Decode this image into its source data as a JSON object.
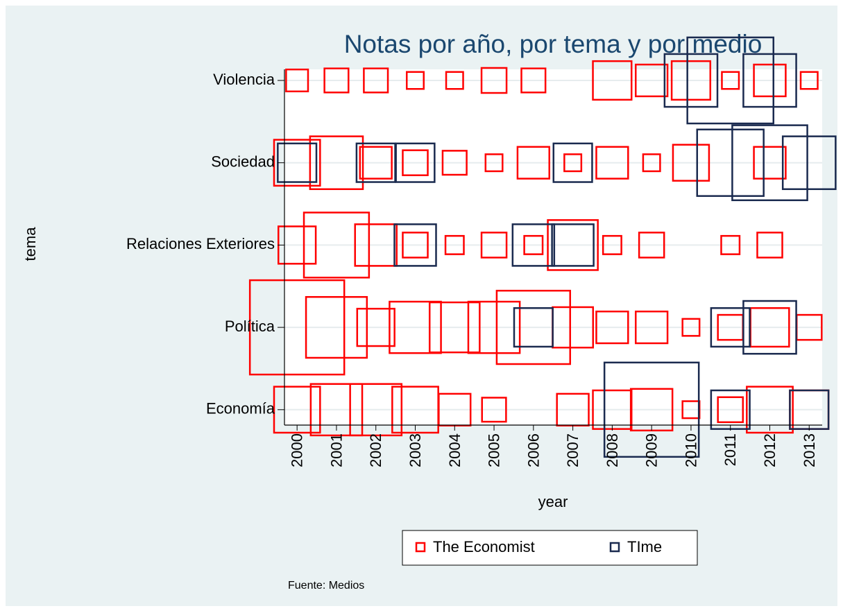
{
  "chart_data": {
    "type": "scatter",
    "title": "Notas por año, por tema y por medio",
    "xlabel": "year",
    "ylabel": "tema",
    "note": "Fuente: Medios",
    "categories": [
      "Violencia",
      "Sociedad",
      "Relaciones Exteriores",
      "Política",
      "Economía"
    ],
    "xlim": [
      1999.68,
      2013.33
    ],
    "xticks": [
      2000,
      2001,
      2002,
      2003,
      2004,
      2005,
      2006,
      2007,
      2008,
      2009,
      2010,
      2011,
      2012,
      2013
    ],
    "grid": true,
    "legend": "bottom",
    "series": [
      {
        "name": "The Economist",
        "color": "#ff0000",
        "x": [
          2000,
          2001,
          2002,
          2003,
          2004,
          2005,
          2006,
          2008,
          2009,
          2010,
          2011,
          2012,
          2013,
          2000,
          2001,
          2002,
          2003,
          2004,
          2005,
          2006,
          2007,
          2008,
          2009,
          2010,
          2012,
          2000,
          2001,
          2002,
          2003,
          2004,
          2005,
          2006,
          2007,
          2008,
          2009,
          2011,
          2012,
          2000,
          2001,
          2002,
          2003,
          2004,
          2005,
          2006,
          2007,
          2008,
          2009,
          2010,
          2011,
          2012,
          2013,
          2000,
          2001,
          2002,
          2003,
          2004,
          2005,
          2007,
          2008,
          2009,
          2010,
          2011,
          2012,
          2013
        ],
        "y": [
          "Violencia",
          "Violencia",
          "Violencia",
          "Violencia",
          "Violencia",
          "Violencia",
          "Violencia",
          "Violencia",
          "Violencia",
          "Violencia",
          "Violencia",
          "Violencia",
          "Violencia",
          "Sociedad",
          "Sociedad",
          "Sociedad",
          "Sociedad",
          "Sociedad",
          "Sociedad",
          "Sociedad",
          "Sociedad",
          "Sociedad",
          "Sociedad",
          "Sociedad",
          "Sociedad",
          "Relaciones Exteriores",
          "Relaciones Exteriores",
          "Relaciones Exteriores",
          "Relaciones Exteriores",
          "Relaciones Exteriores",
          "Relaciones Exteriores",
          "Relaciones Exteriores",
          "Relaciones Exteriores",
          "Relaciones Exteriores",
          "Relaciones Exteriores",
          "Relaciones Exteriores",
          "Relaciones Exteriores",
          "Política",
          "Política",
          "Política",
          "Política",
          "Política",
          "Política",
          "Política",
          "Política",
          "Política",
          "Política",
          "Política",
          "Política",
          "Política",
          "Política",
          "Economía",
          "Economía",
          "Economía",
          "Economía",
          "Economía",
          "Economía",
          "Economía",
          "Economía",
          "Economía",
          "Economía",
          "Economía",
          "Economía",
          "Economía"
        ],
        "sizes": [
          10,
          12,
          12,
          6,
          6,
          13,
          12,
          31,
          21,
          31,
          6,
          21,
          6,
          44,
          58,
          21,
          13,
          12,
          6,
          21,
          6,
          21,
          6,
          27,
          21,
          29,
          88,
          36,
          13,
          7,
          13,
          7,
          52,
          7,
          13,
          7,
          13,
          185,
          77,
          29,
          55,
          52,
          55,
          112,
          34,
          21,
          21,
          6,
          13,
          31,
          13,
          44,
          55,
          55,
          44,
          21,
          12,
          21,
          31,
          36,
          6,
          13,
          44,
          31
        ]
      },
      {
        "name": "TIme",
        "color": "#1a2a4f",
        "x": [
          2010,
          2011,
          2012,
          2000,
          2002,
          2003,
          2007,
          2011,
          2012,
          2013,
          2003,
          2006,
          2007,
          2006,
          2011,
          2012,
          2009,
          2011,
          2013
        ],
        "y": [
          "Violencia",
          "Violencia",
          "Violencia",
          "Sociedad",
          "Sociedad",
          "Sociedad",
          "Sociedad",
          "Sociedad",
          "Sociedad",
          "Sociedad",
          "Relaciones Exteriores",
          "Relaciones Exteriores",
          "Relaciones Exteriores",
          "Política",
          "Política",
          "Política",
          "Economía",
          "Economía",
          "Economía"
        ],
        "sizes": [
          58,
          154,
          58,
          31,
          31,
          31,
          31,
          92,
          117,
          58,
          36,
          36,
          36,
          31,
          31,
          58,
          185,
          31,
          31
        ]
      }
    ]
  }
}
